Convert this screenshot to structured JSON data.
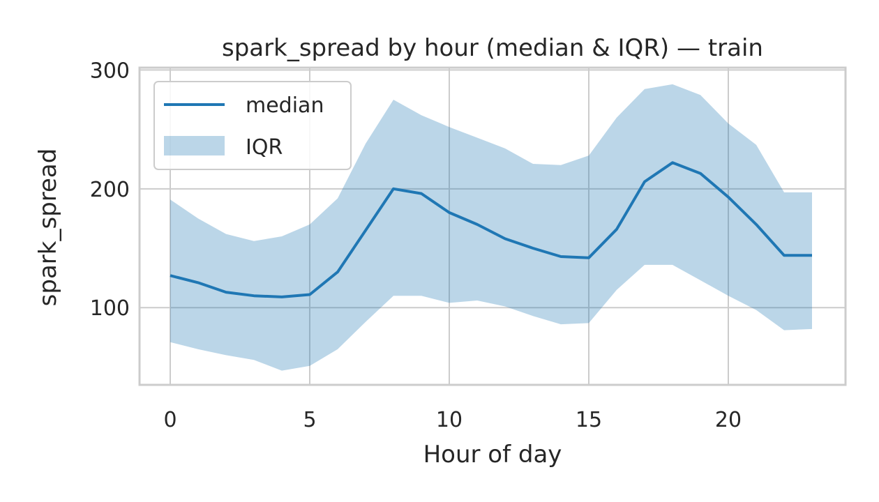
{
  "chart_data": {
    "type": "line",
    "title": "spark_spread by hour (median & IQR) — train",
    "xlabel": "Hour of day",
    "ylabel": "spark_spread",
    "xlim": [
      -1.1,
      24.2
    ],
    "ylim": [
      35,
      302
    ],
    "xticks": [
      0,
      5,
      10,
      15,
      20
    ],
    "yticks": [
      100,
      200,
      300
    ],
    "grid": true,
    "legend_position": "top-left",
    "x": [
      0,
      1,
      2,
      3,
      4,
      5,
      6,
      7,
      8,
      9,
      10,
      11,
      12,
      13,
      14,
      15,
      16,
      17,
      18,
      19,
      20,
      21,
      22,
      23
    ],
    "series": [
      {
        "name": "median",
        "kind": "line",
        "color": "#1f77b4",
        "values": [
          127,
          121,
          113,
          110,
          109,
          111,
          130,
          165,
          200,
          196,
          180,
          170,
          158,
          150,
          143,
          142,
          166,
          206,
          222,
          213,
          193,
          170,
          144,
          144
        ]
      },
      {
        "name": "IQR",
        "kind": "band",
        "color": "#1f77b4",
        "alpha": 0.3,
        "lower": [
          71,
          65,
          60,
          56,
          47,
          51,
          65,
          88,
          110,
          110,
          104,
          106,
          101,
          93,
          86,
          87,
          115,
          136,
          136,
          123,
          110,
          98,
          81,
          82
        ],
        "upper": [
          191,
          175,
          162,
          156,
          160,
          170,
          192,
          238,
          275,
          262,
          252,
          243,
          234,
          221,
          220,
          228,
          260,
          284,
          288,
          279,
          255,
          237,
          197,
          197
        ]
      }
    ]
  }
}
